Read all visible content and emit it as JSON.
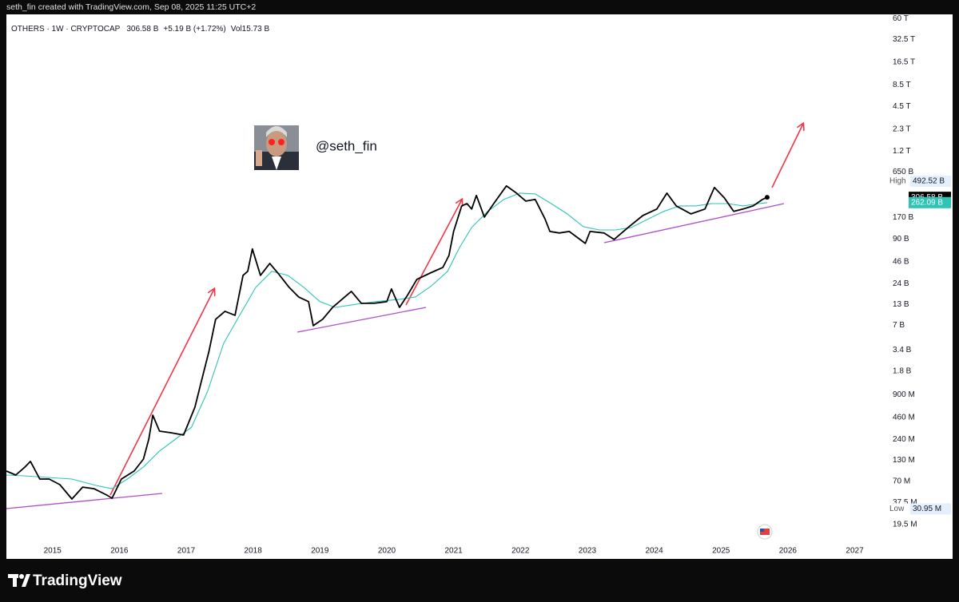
{
  "header": {
    "text": "seth_fin created with TradingView.com, Sep 08, 2025 11:25 UTC+2"
  },
  "footer": {
    "brand": "TradingView"
  },
  "chart_data": {
    "type": "line",
    "legend": {
      "symbol": "OTHERS · 1W · CRYPTOCAP",
      "last": "306.58 B",
      "change": "+5.19 B (+1.72%)",
      "volume": "Vol15.73 B"
    },
    "watermark": "@seth_fin",
    "log_scale": true,
    "grid": false,
    "xlim": [
      2014.31,
      2027.46
    ],
    "xticks": [
      2015,
      2016,
      2017,
      2018,
      2019,
      2020,
      2021,
      2022,
      2023,
      2024,
      2025,
      2026,
      2027
    ],
    "ylim": [
      11900000.0,
      68000000000000.0
    ],
    "yticks": [
      {
        "value": 60000000000000.0,
        "label": "60 T"
      },
      {
        "value": 32500000000000.0,
        "label": "32.5 T"
      },
      {
        "value": 16500000000000.0,
        "label": "16.5 T"
      },
      {
        "value": 8500000000000.0,
        "label": "8.5 T"
      },
      {
        "value": 4500000000000.0,
        "label": "4.5 T"
      },
      {
        "value": 2300000000000.0,
        "label": "2.3 T"
      },
      {
        "value": 1200000000000.0,
        "label": "1.2 T"
      },
      {
        "value": 650000000000.0,
        "label": "650 B"
      },
      {
        "value": 170000000000.0,
        "label": "170 B"
      },
      {
        "value": 90000000000.0,
        "label": "90 B"
      },
      {
        "value": 46000000000.0,
        "label": "46 B"
      },
      {
        "value": 24000000000.0,
        "label": "24 B"
      },
      {
        "value": 13000000000.0,
        "label": "13 B"
      },
      {
        "value": 7000000000.0,
        "label": "7 B"
      },
      {
        "value": 3400000000.0,
        "label": "3.4 B"
      },
      {
        "value": 1800000000.0,
        "label": "1.8 B"
      },
      {
        "value": 900000000.0,
        "label": "900 M"
      },
      {
        "value": 460000000.0,
        "label": "460 M"
      },
      {
        "value": 240000000.0,
        "label": "240 M"
      },
      {
        "value": 130000000.0,
        "label": "130 M"
      },
      {
        "value": 70000000.0,
        "label": "70 M"
      },
      {
        "value": 37500000.0,
        "label": "37.5 M"
      },
      {
        "value": 19500000.0,
        "label": "19.5 M"
      }
    ],
    "series": [
      {
        "color": "#000000",
        "x": [
          2014.31,
          2014.45,
          2014.59,
          2014.67,
          2014.81,
          2014.95,
          2015.11,
          2015.29,
          2015.45,
          2015.62,
          2015.81,
          2015.89,
          2016.03,
          2016.22,
          2016.36,
          2016.44,
          2016.5,
          2016.6,
          2016.77,
          2016.96,
          2017.13,
          2017.22,
          2017.34,
          2017.44,
          2017.58,
          2017.73,
          2017.85,
          2017.92,
          2017.99,
          2018.11,
          2018.25,
          2018.4,
          2018.54,
          2018.68,
          2018.83,
          2018.9,
          2019.04,
          2019.19,
          2019.33,
          2019.47,
          2019.62,
          2019.81,
          2020.0,
          2020.07,
          2020.19,
          2020.31,
          2020.45,
          2020.65,
          2020.84,
          2020.93,
          2021.0,
          2021.12,
          2021.2,
          2021.27,
          2021.34,
          2021.46,
          2021.6,
          2021.79,
          2021.94,
          2022.08,
          2022.22,
          2022.37,
          2022.44,
          2022.58,
          2022.73,
          2022.89,
          2022.97,
          2023.04,
          2023.25,
          2023.4,
          2023.61,
          2023.83,
          2024.04,
          2024.19,
          2024.33,
          2024.55,
          2024.76,
          2024.9,
          2025.05,
          2025.19,
          2025.33,
          2025.48,
          2025.62,
          2025.69
        ],
        "values": [
          94700000.0,
          84200000.0,
          107000000.0,
          126000000.0,
          74800000.0,
          74800000.0,
          63400000.0,
          41500000.0,
          59000000.0,
          56300000.0,
          46700000.0,
          42500000.0,
          74800000.0,
          94700000.0,
          135000000.0,
          243000000.0,
          493000000.0,
          308000000.0,
          294000000.0,
          274000000.0,
          625000000.0,
          1270000000.0,
          3260000000.0,
          8370000000.0,
          10600000000.0,
          9410000000.0,
          30600000000.0,
          34500000000.0,
          66700000000.0,
          30600000000.0,
          43600000000.0,
          30600000000.0,
          21500000000.0,
          16200000000.0,
          14100000000.0,
          6930000000.0,
          8370000000.0,
          11900000000.0,
          15100000000.0,
          19100000000.0,
          13400000000.0,
          13400000000.0,
          14100000000.0,
          20500000000.0,
          11900000000.0,
          17000000000.0,
          27200000000.0,
          32800000000.0,
          38700000000.0,
          55200000000.0,
          112000000000.0,
          238000000000.0,
          255000000000.0,
          217000000000.0,
          324000000000.0,
          171000000000.0,
          255000000000.0,
          430000000000.0,
          347000000000.0,
          274000000000.0,
          288000000000.0,
          160000000000.0,
          112000000000.0,
          107000000000.0,
          112000000000.0,
          88500000000.0,
          78600000000.0,
          112000000000.0,
          107000000000.0,
          88500000000.0,
          126000000000.0,
          179000000000.0,
          217000000000.0,
          347000000000.0,
          238000000000.0,
          188000000000.0,
          217000000000.0,
          410000000000.0,
          301000000000.0,
          202000000000.0,
          217000000000.0,
          238000000000.0,
          288000000000.0,
          307000000000.0
        ]
      },
      {
        "color": "#2ec4b6",
        "x": [
          2014.31,
          2014.57,
          2014.93,
          2015.29,
          2015.65,
          2015.89,
          2016.12,
          2016.36,
          2016.6,
          2016.84,
          2017.08,
          2017.32,
          2017.56,
          2017.8,
          2018.04,
          2018.28,
          2018.52,
          2018.76,
          2019.0,
          2019.23,
          2019.47,
          2019.83,
          2020.19,
          2020.43,
          2020.67,
          2020.91,
          2021.09,
          2021.27,
          2021.51,
          2021.75,
          2021.99,
          2022.22,
          2022.46,
          2022.7,
          2022.94,
          2023.18,
          2023.42,
          2023.66,
          2023.9,
          2024.14,
          2024.38,
          2024.62,
          2024.86,
          2025.1,
          2025.33,
          2025.57,
          2025.69
        ],
        "values": [
          84200000.0,
          82200000.0,
          78500000.0,
          74800000.0,
          61900000.0,
          56300000.0,
          74800000.0,
          107000000.0,
          171000000.0,
          243000000.0,
          346000000.0,
          1000000000.0,
          4120000000.0,
          9410000000.0,
          21500000000.0,
          34500000000.0,
          30600000000.0,
          21500000000.0,
          14100000000.0,
          11900000000.0,
          12800000000.0,
          14100000000.0,
          15100000000.0,
          16200000000.0,
          22500000000.0,
          34500000000.0,
          69900000000.0,
          126000000000.0,
          202000000000.0,
          288000000000.0,
          347000000000.0,
          339000000000.0,
          255000000000.0,
          188000000000.0,
          129000000000.0,
          117000000000.0,
          117000000000.0,
          126000000000.0,
          160000000000.0,
          202000000000.0,
          238000000000.0,
          238000000000.0,
          255000000000.0,
          255000000000.0,
          238000000000.0,
          255000000000.0,
          262000000000.0
        ]
      }
    ],
    "price_tags": [
      {
        "value": 306580000000.0,
        "label": "306.58 B",
        "color": "#000000"
      },
      {
        "value": 262090000000.0,
        "label": "262.09 B",
        "color": "#2ec4b6"
      }
    ],
    "high": {
      "name": "High",
      "value": 492520000000.0,
      "label": "492.52 B"
    },
    "low": {
      "name": "Low",
      "value": 30950000.0,
      "label": "30.95 M"
    }
  }
}
